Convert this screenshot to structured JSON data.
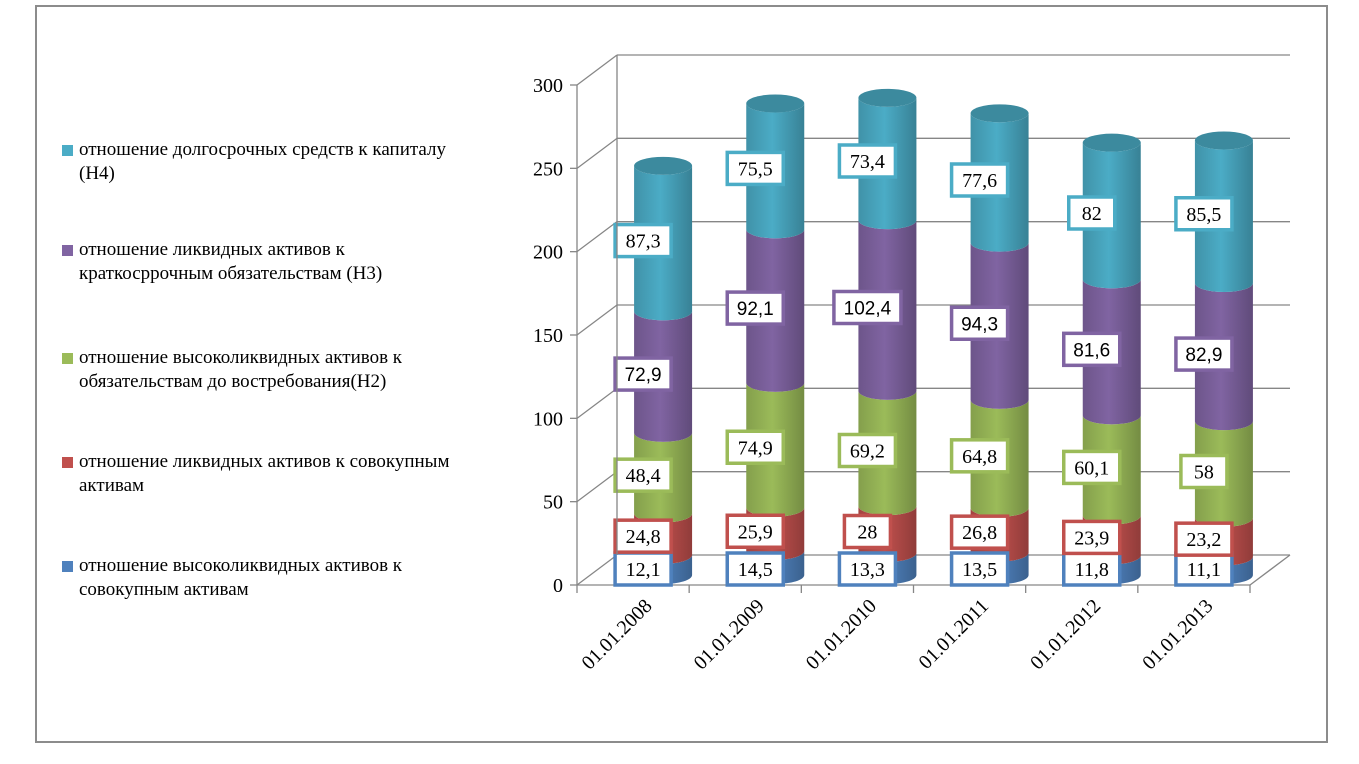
{
  "chart_data": {
    "type": "bar",
    "stacked": true,
    "style": "3d-cylinder",
    "categories": [
      "01.01.2008",
      "01.01.2009",
      "01.01.2010",
      "01.01.2011",
      "01.01.2012",
      "01.01.2013"
    ],
    "ylim": [
      0,
      300
    ],
    "yticks": [
      "0",
      "50",
      "100",
      "150",
      "200",
      "250",
      "300"
    ],
    "grid": true,
    "legend_position": "left",
    "series": [
      {
        "name": "отношение высоколиквидных активов к совокупным активам",
        "color": "#4F81BD",
        "values": [
          12.1,
          14.5,
          13.3,
          13.5,
          11.8,
          11.1
        ],
        "labels": [
          "12,1",
          "14,5",
          "13,3",
          "13,5",
          "11,8",
          "11,1"
        ]
      },
      {
        "name": "отношение ликвидных активов к совокупным активам",
        "color": "#C0504D",
        "values": [
          24.8,
          25.9,
          28,
          26.8,
          23.9,
          23.2
        ],
        "labels": [
          "24,8",
          "25,9",
          "28",
          "26,8",
          "23,9",
          "23,2"
        ]
      },
      {
        "name": "отношение высоколиквидных активов к обязательствам до востребования(Н2)",
        "color": "#9BBB59",
        "values": [
          48.4,
          74.9,
          69.2,
          64.8,
          60.1,
          58
        ],
        "labels": [
          "48,4",
          "74,9",
          "69,2",
          "64,8",
          "60,1",
          "58"
        ]
      },
      {
        "name": "отношение ликвидных активов к краткосррочным обязательствам (Н3)",
        "color": "#8064A2",
        "values": [
          72.9,
          92.1,
          102.4,
          94.3,
          81.6,
          82.9
        ],
        "labels": [
          "72,9",
          "92,1",
          "102,4",
          "94,3",
          "81,6",
          "82,9"
        ]
      },
      {
        "name": "отношение долгосрочных средств к капиталу (Н4)",
        "color": "#4BACC6",
        "values": [
          87.3,
          75.5,
          73.4,
          77.6,
          82,
          85.5
        ],
        "labels": [
          "87,3",
          "75,5",
          "73,4",
          "77,6",
          "82",
          "85,5"
        ]
      }
    ]
  },
  "legend": {
    "items": [
      {
        "label": "отношение долгосрочных средств к капиталу (Н4)",
        "color": "#4BACC6"
      },
      {
        "label": "отношение ликвидных активов к краткосррочным обязательствам (Н3)",
        "color": "#8064A2"
      },
      {
        "label": "отношение высоколиквидных активов к обязательствам до востребования(Н2)",
        "color": "#9BBB59"
      },
      {
        "label": "отношение ликвидных активов к совокупным активам",
        "color": "#C0504D"
      },
      {
        "label": "отношение высоколиквидных активов к совокупным активам",
        "color": "#4F81BD"
      }
    ]
  }
}
